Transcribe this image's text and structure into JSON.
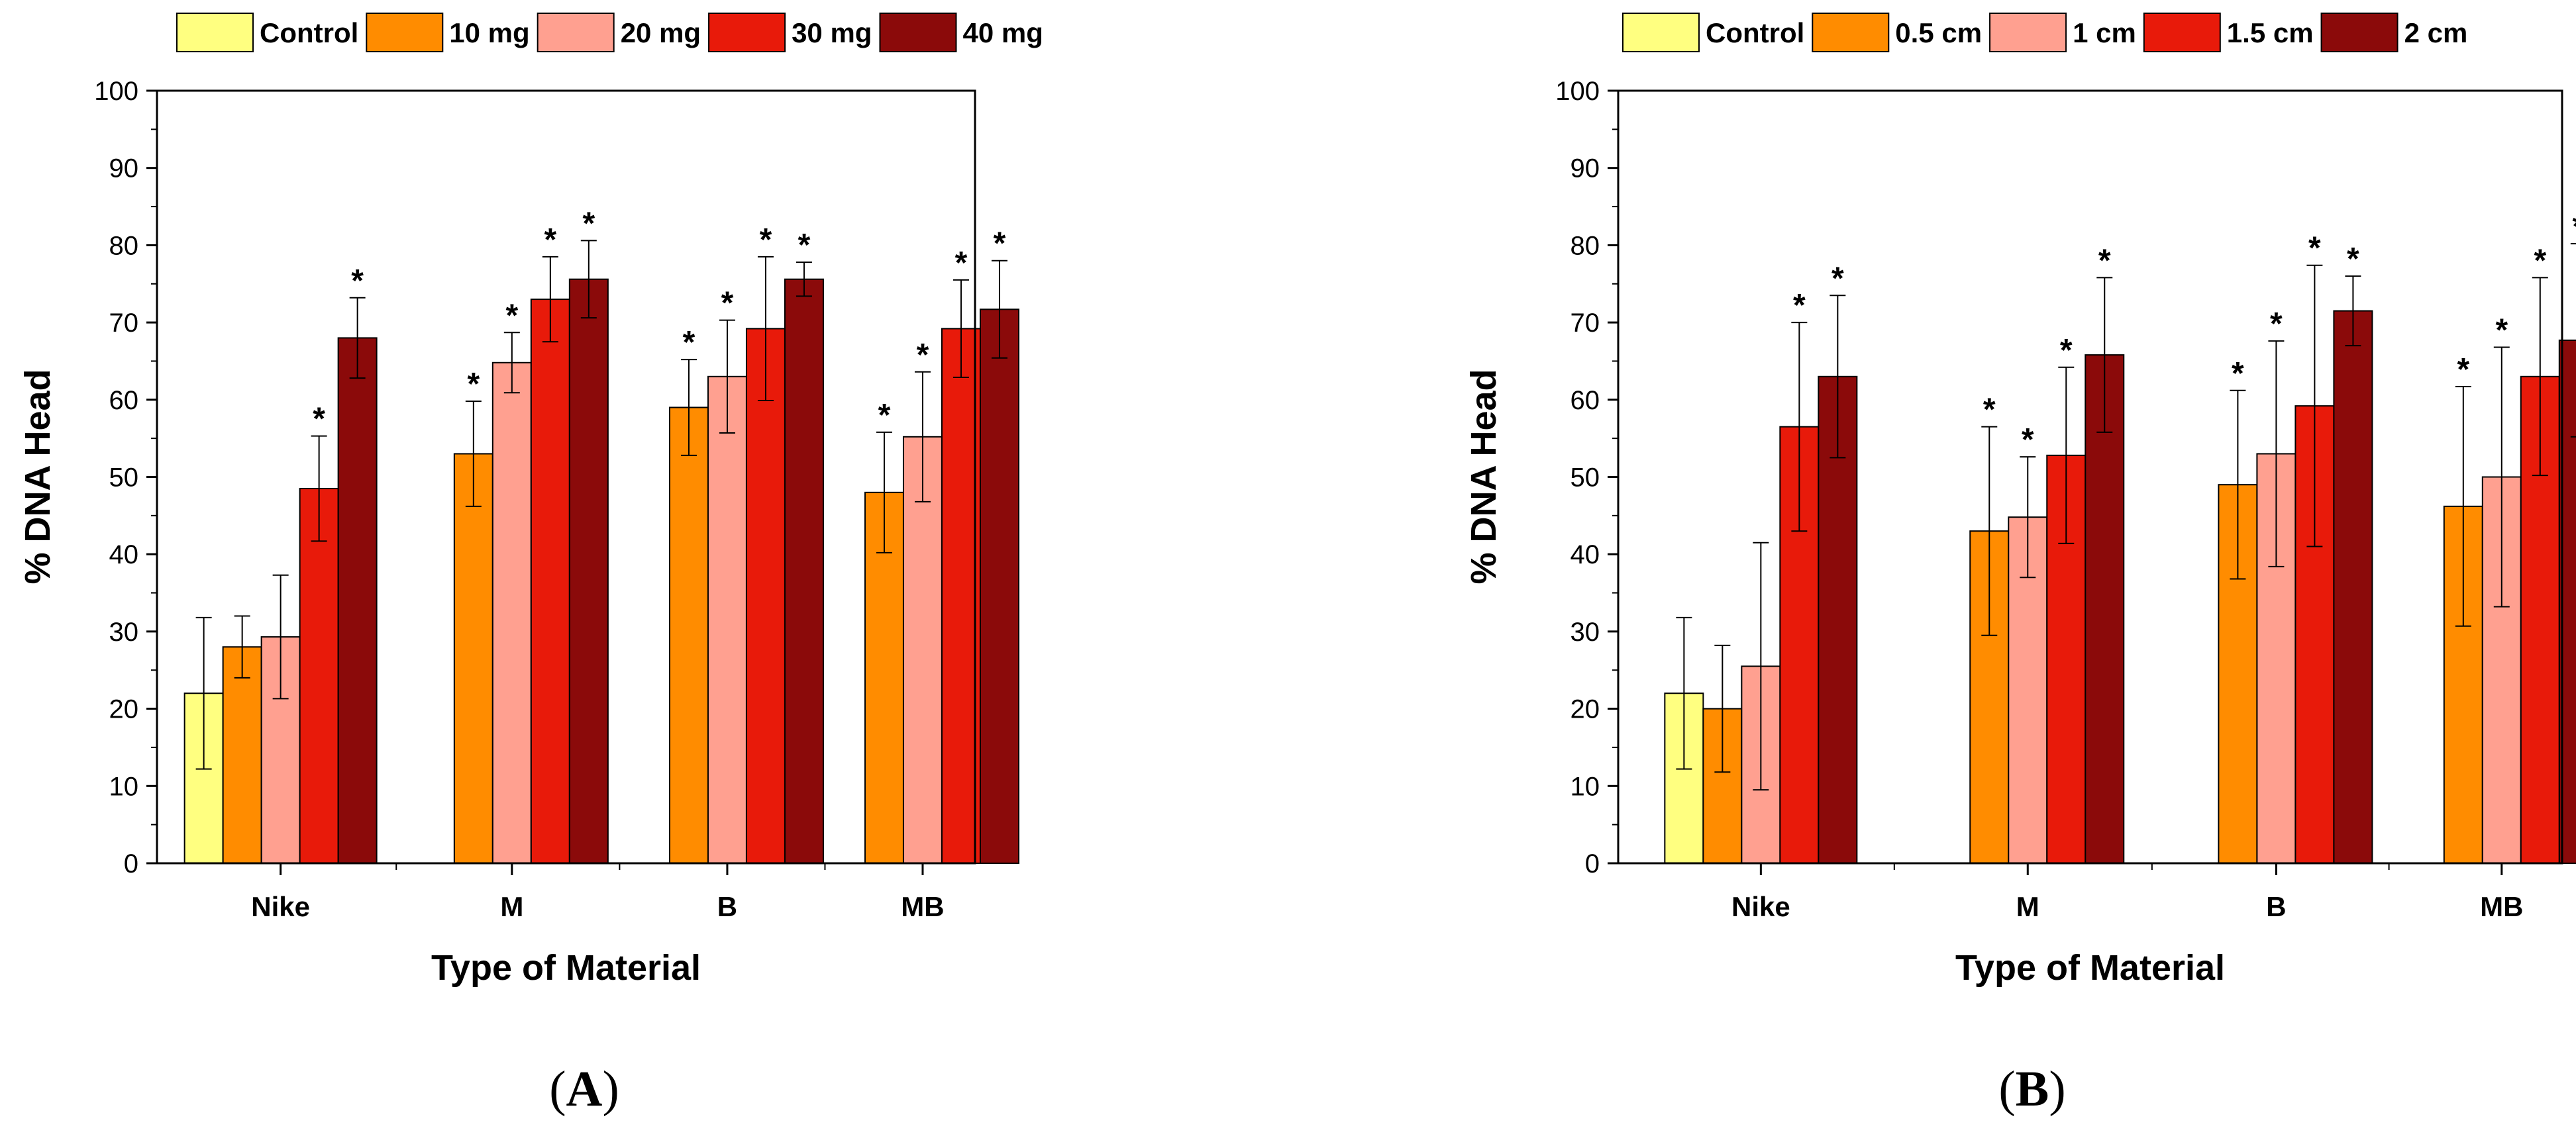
{
  "chart_data": [
    {
      "type": "bar",
      "panel_label": "(A)",
      "panel_letter": "A",
      "title": "",
      "xlabel": "Type of Material",
      "ylabel": "% DNA Head",
      "ylim": [
        0,
        100
      ],
      "ytick_step": 10,
      "grid": false,
      "legend_position": "top",
      "categories": [
        "Nike",
        "M",
        "B",
        "MB"
      ],
      "colors": [
        "#ffff80",
        "#ff8c00",
        "#ffa090",
        "#e81a0a",
        "#8b0a0a"
      ],
      "series": [
        {
          "name": "Control",
          "values": [
            22,
            null,
            null,
            null
          ],
          "errors": [
            9.8,
            null,
            null,
            null
          ],
          "significant": [
            false,
            false,
            false,
            false
          ]
        },
        {
          "name": "10 mg",
          "values": [
            28,
            53,
            59,
            48
          ],
          "errors": [
            4,
            6.8,
            6.2,
            7.8
          ],
          "significant": [
            false,
            true,
            true,
            true
          ]
        },
        {
          "name": "20 mg",
          "values": [
            29.3,
            64.8,
            63,
            55.2
          ],
          "errors": [
            8,
            3.9,
            7.3,
            8.4
          ],
          "significant": [
            false,
            true,
            true,
            true
          ]
        },
        {
          "name": "30 mg",
          "values": [
            48.5,
            73,
            69.2,
            69.2
          ],
          "errors": [
            6.8,
            5.5,
            9.3,
            6.3
          ],
          "significant": [
            true,
            true,
            true,
            true
          ]
        },
        {
          "name": "40 mg",
          "values": [
            68,
            75.6,
            75.6,
            71.7
          ],
          "errors": [
            5.2,
            5,
            2.2,
            6.3
          ],
          "significant": [
            true,
            true,
            true,
            true
          ]
        }
      ],
      "significance_marker": "*"
    },
    {
      "type": "bar",
      "panel_label": "(B)",
      "panel_letter": "B",
      "title": "",
      "xlabel": "Type of Material",
      "ylabel": "% DNA Head",
      "ylim": [
        0,
        100
      ],
      "ytick_step": 10,
      "grid": false,
      "legend_position": "top",
      "categories": [
        "Nike",
        "M",
        "B",
        "MB"
      ],
      "colors": [
        "#ffff80",
        "#ff8c00",
        "#ffa090",
        "#e81a0a",
        "#8b0a0a"
      ],
      "series": [
        {
          "name": "Control",
          "values": [
            22,
            null,
            null,
            null
          ],
          "errors": [
            9.8,
            null,
            null,
            null
          ],
          "significant": [
            false,
            false,
            false,
            false
          ]
        },
        {
          "name": "0.5 cm",
          "values": [
            20,
            43,
            49,
            46.2
          ],
          "errors": [
            8.2,
            13.5,
            12.2,
            15.5
          ],
          "significant": [
            false,
            true,
            true,
            true
          ]
        },
        {
          "name": "1 cm",
          "values": [
            25.5,
            44.8,
            53,
            50
          ],
          "errors": [
            16,
            7.8,
            14.6,
            16.8
          ],
          "significant": [
            false,
            true,
            true,
            true
          ]
        },
        {
          "name": "1.5 cm",
          "values": [
            56.5,
            52.8,
            59.2,
            63
          ],
          "errors": [
            13.5,
            11.4,
            18.2,
            12.8
          ],
          "significant": [
            true,
            true,
            true,
            true
          ]
        },
        {
          "name": "2 cm",
          "values": [
            63,
            65.8,
            71.5,
            67.7
          ],
          "errors": [
            10.5,
            10,
            4.5,
            12.5
          ],
          "significant": [
            true,
            true,
            true,
            true
          ]
        }
      ],
      "significance_marker": "*"
    }
  ]
}
